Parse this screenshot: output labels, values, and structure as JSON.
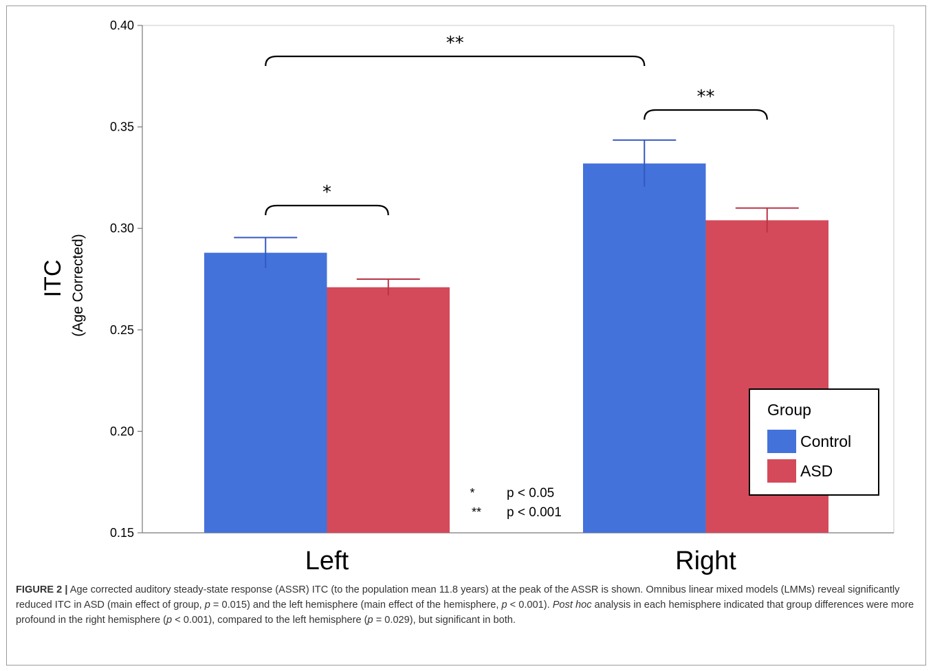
{
  "colors": {
    "control": "#4472db",
    "asd": "#d44a5a",
    "control_err": "#3557c0",
    "asd_err": "#b83444",
    "frame": "#9a9a9a",
    "text": "#000000"
  },
  "chart_data": {
    "type": "bar",
    "title": "",
    "ylabel": "ITC",
    "ylabel_sub": "(Age Corrected)",
    "xlabel": "",
    "ylim": [
      0.15,
      0.4
    ],
    "yticks": [
      "0.40",
      "0.35",
      "0.30",
      "0.25",
      "0.20",
      "0.15"
    ],
    "ytick_values": [
      0.4,
      0.35,
      0.3,
      0.25,
      0.2,
      0.15
    ],
    "categories": [
      "Left",
      "Right"
    ],
    "series": [
      {
        "name": "Control",
        "values": [
          0.288,
          0.332
        ],
        "error": [
          0.0075,
          0.0115
        ]
      },
      {
        "name": "ASD",
        "values": [
          0.271,
          0.304
        ],
        "error": [
          0.004,
          0.006
        ]
      }
    ],
    "grid": false,
    "legend": {
      "title": "Group",
      "position": "bottom-right"
    },
    "significance": [
      {
        "label": "**",
        "between": "Left-Control to Right-Control"
      },
      {
        "label": "**",
        "between": "Right-Control to Right-ASD"
      },
      {
        "label": "*",
        "between": "Left-Control to Left-ASD"
      }
    ],
    "significance_key": [
      {
        "symbol": "*",
        "text": "p < 0.05"
      },
      {
        "symbol": "**",
        "text": "p < 0.001"
      }
    ]
  },
  "caption": {
    "label": "FIGURE 2",
    "sep": "|",
    "p1": " Age corrected auditory steady-state response (ASSR) ITC (to the population mean 11.8 years) at the peak of the ASSR is shown. Omnibus linear mixed models (LMMs) reveal significantly reduced ITC in ASD (main effect of group, ",
    "p_sym1": "p",
    "p2": " = 0.015) and the left hemisphere (main effect of the hemisphere, ",
    "p_sym2": "p",
    "p3": " < 0.001). ",
    "post_hoc": "Post hoc",
    "p4": " analysis in each hemisphere indicated that group differences were more profound in the right hemisphere (",
    "p_sym3": "p",
    "p5": " < 0.001), compared to the left hemisphere (",
    "p_sym4": "p",
    "p6": " = 0.029), but significant in both."
  }
}
